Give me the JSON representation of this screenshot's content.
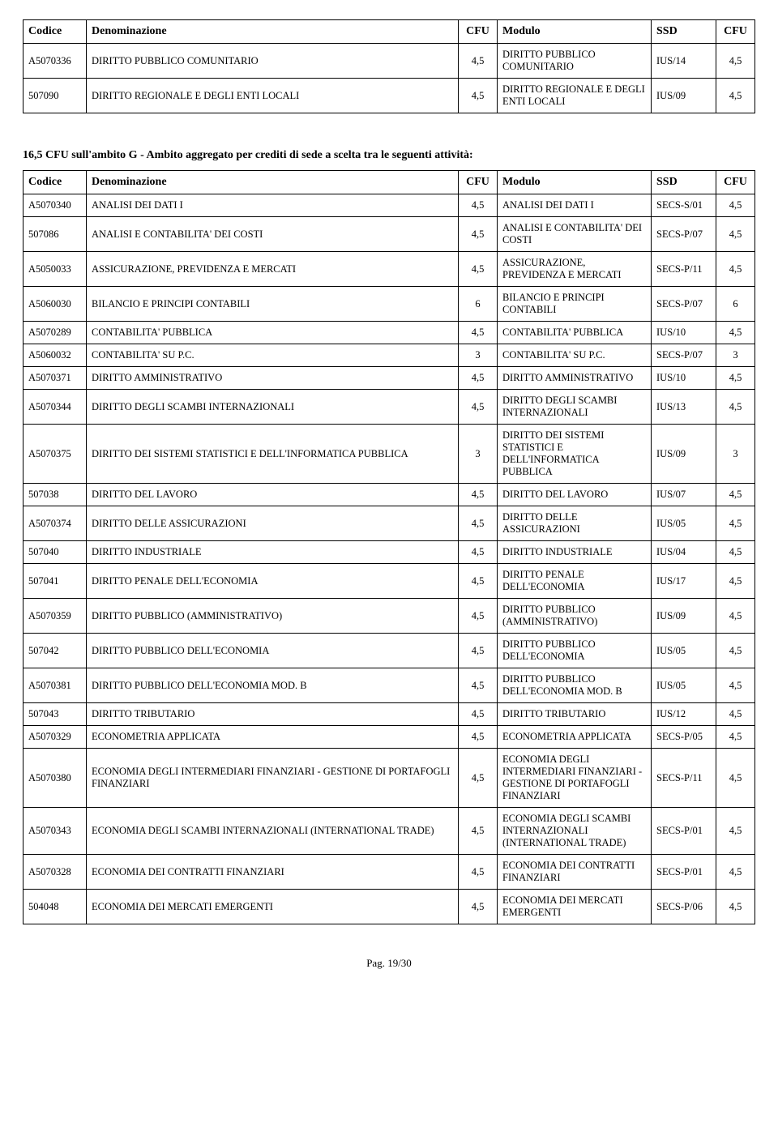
{
  "table1": {
    "headers": [
      "Codice",
      "Denominazione",
      "CFU",
      "Modulo",
      "SSD",
      "CFU"
    ],
    "rows": [
      [
        "A5070336",
        "DIRITTO PUBBLICO COMUNITARIO",
        "4,5",
        "DIRITTO PUBBLICO COMUNITARIO",
        "IUS/14",
        "4,5"
      ],
      [
        "507090",
        "DIRITTO REGIONALE E DEGLI ENTI LOCALI",
        "4,5",
        "DIRITTO REGIONALE E DEGLI ENTI LOCALI",
        "IUS/09",
        "4,5"
      ]
    ]
  },
  "section_title": "16,5 CFU sull'ambito G - Ambito aggregato per crediti di sede a scelta tra le seguenti attività:",
  "table2": {
    "headers": [
      "Codice",
      "Denominazione",
      "CFU",
      "Modulo",
      "SSD",
      "CFU"
    ],
    "rows": [
      [
        "A5070340",
        "ANALISI DEI DATI I",
        "4,5",
        "ANALISI DEI DATI I",
        "SECS-S/01",
        "4,5"
      ],
      [
        "507086",
        "ANALISI E CONTABILITA' DEI COSTI",
        "4,5",
        "ANALISI E CONTABILITA' DEI COSTI",
        "SECS-P/07",
        "4,5"
      ],
      [
        "A5050033",
        "ASSICURAZIONE, PREVIDENZA E MERCATI",
        "4,5",
        "ASSICURAZIONE, PREVIDENZA E MERCATI",
        "SECS-P/11",
        "4,5"
      ],
      [
        "A5060030",
        "BILANCIO E PRINCIPI CONTABILI",
        "6",
        "BILANCIO E PRINCIPI CONTABILI",
        "SECS-P/07",
        "6"
      ],
      [
        "A5070289",
        "CONTABILITA' PUBBLICA",
        "4,5",
        "CONTABILITA' PUBBLICA",
        "IUS/10",
        "4,5"
      ],
      [
        "A5060032",
        "CONTABILITA' SU P.C.",
        "3",
        "CONTABILITA' SU P.C.",
        "SECS-P/07",
        "3"
      ],
      [
        "A5070371",
        "DIRITTO AMMINISTRATIVO",
        "4,5",
        "DIRITTO AMMINISTRATIVO",
        "IUS/10",
        "4,5"
      ],
      [
        "A5070344",
        "DIRITTO DEGLI SCAMBI INTERNAZIONALI",
        "4,5",
        "DIRITTO DEGLI SCAMBI INTERNAZIONALI",
        "IUS/13",
        "4,5"
      ],
      [
        "A5070375",
        "DIRITTO DEI SISTEMI STATISTICI E DELL'INFORMATICA PUBBLICA",
        "3",
        "DIRITTO DEI SISTEMI STATISTICI E DELL'INFORMATICA PUBBLICA",
        "IUS/09",
        "3"
      ],
      [
        "507038",
        "DIRITTO DEL LAVORO",
        "4,5",
        "DIRITTO DEL LAVORO",
        "IUS/07",
        "4,5"
      ],
      [
        "A5070374",
        "DIRITTO DELLE ASSICURAZIONI",
        "4,5",
        "DIRITTO DELLE ASSICURAZIONI",
        "IUS/05",
        "4,5"
      ],
      [
        "507040",
        "DIRITTO INDUSTRIALE",
        "4,5",
        "DIRITTO INDUSTRIALE",
        "IUS/04",
        "4,5"
      ],
      [
        "507041",
        "DIRITTO PENALE DELL'ECONOMIA",
        "4,5",
        "DIRITTO PENALE DELL'ECONOMIA",
        "IUS/17",
        "4,5"
      ],
      [
        "A5070359",
        "DIRITTO PUBBLICO (AMMINISTRATIVO)",
        "4,5",
        "DIRITTO PUBBLICO (AMMINISTRATIVO)",
        "IUS/09",
        "4,5"
      ],
      [
        "507042",
        "DIRITTO PUBBLICO DELL'ECONOMIA",
        "4,5",
        "DIRITTO PUBBLICO DELL'ECONOMIA",
        "IUS/05",
        "4,5"
      ],
      [
        "A5070381",
        "DIRITTO PUBBLICO DELL'ECONOMIA MOD. B",
        "4,5",
        "DIRITTO PUBBLICO DELL'ECONOMIA MOD. B",
        "IUS/05",
        "4,5"
      ],
      [
        "507043",
        "DIRITTO TRIBUTARIO",
        "4,5",
        "DIRITTO TRIBUTARIO",
        "IUS/12",
        "4,5"
      ],
      [
        "A5070329",
        "ECONOMETRIA APPLICATA",
        "4,5",
        "ECONOMETRIA APPLICATA",
        "SECS-P/05",
        "4,5"
      ],
      [
        "A5070380",
        "ECONOMIA DEGLI INTERMEDIARI FINANZIARI - GESTIONE DI PORTAFOGLI FINANZIARI",
        "4,5",
        "ECONOMIA DEGLI INTERMEDIARI FINANZIARI - GESTIONE DI PORTAFOGLI FINANZIARI",
        "SECS-P/11",
        "4,5"
      ],
      [
        "A5070343",
        "ECONOMIA DEGLI SCAMBI INTERNAZIONALI (INTERNATIONAL TRADE)",
        "4,5",
        "ECONOMIA DEGLI SCAMBI INTERNAZIONALI (INTERNATIONAL TRADE)",
        "SECS-P/01",
        "4,5"
      ],
      [
        "A5070328",
        "ECONOMIA DEI CONTRATTI FINANZIARI",
        "4,5",
        "ECONOMIA DEI CONTRATTI FINANZIARI",
        "SECS-P/01",
        "4,5"
      ],
      [
        "504048",
        "ECONOMIA DEI MERCATI EMERGENTI",
        "4,5",
        "ECONOMIA DEI MERCATI EMERGENTI",
        "SECS-P/06",
        "4,5"
      ]
    ]
  },
  "pager": "Pag. 19/30"
}
